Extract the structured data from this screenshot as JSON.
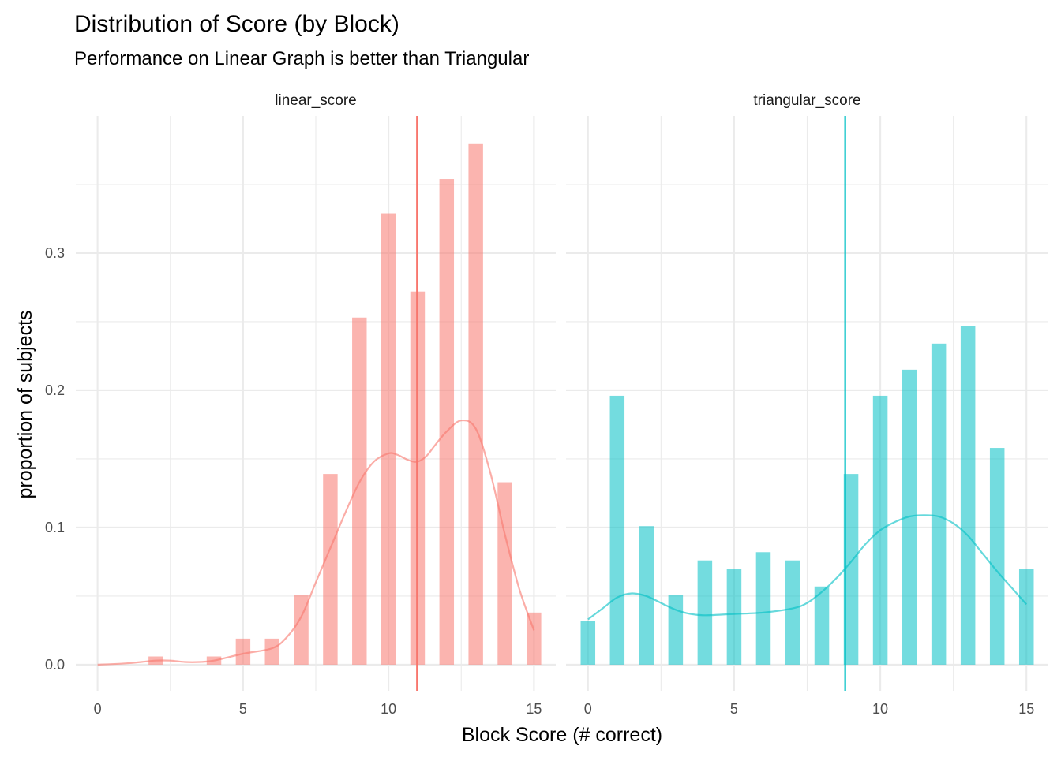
{
  "chart_data": {
    "type": "bar",
    "title": "Distribution of Score (by Block)",
    "subtitle": "Performance on Linear Graph is better than Triangular",
    "xlabel": "Block Score (# correct)",
    "ylabel": "proportion of subjects",
    "xlim": [
      -0.75,
      15.75
    ],
    "ylim": [
      -0.019,
      0.4
    ],
    "x_ticks": [
      0,
      5,
      10,
      15
    ],
    "y_ticks": [
      0.0,
      0.1,
      0.2,
      0.3
    ],
    "y_tick_labels": [
      "0.0",
      "0.1",
      "0.2",
      "0.3"
    ],
    "grid": true,
    "legend": "none",
    "facets": [
      {
        "name": "linear_score",
        "color": "#F8766D",
        "mean": 10.98,
        "bars": [
          {
            "x": 2,
            "value": 0.006
          },
          {
            "x": 4,
            "value": 0.006
          },
          {
            "x": 5,
            "value": 0.019
          },
          {
            "x": 6,
            "value": 0.019
          },
          {
            "x": 7,
            "value": 0.051
          },
          {
            "x": 8,
            "value": 0.139
          },
          {
            "x": 9,
            "value": 0.253
          },
          {
            "x": 10,
            "value": 0.329
          },
          {
            "x": 11,
            "value": 0.272
          },
          {
            "x": 12,
            "value": 0.354
          },
          {
            "x": 13,
            "value": 0.38
          },
          {
            "x": 14,
            "value": 0.133
          },
          {
            "x": 15,
            "value": 0.038
          }
        ],
        "density": {
          "x": [
            0,
            1,
            1.5,
            2,
            2.5,
            3,
            3.5,
            4,
            5,
            6,
            6.5,
            7,
            7.5,
            8,
            8.5,
            9,
            9.5,
            10,
            10.3,
            10.7,
            11,
            11.3,
            11.6,
            12,
            12.5,
            13,
            13.5,
            14,
            14.5,
            15
          ],
          "y": [
            0,
            0.001,
            0.002,
            0.003,
            0.003,
            0.002,
            0.002,
            0.003,
            0.008,
            0.012,
            0.02,
            0.035,
            0.06,
            0.085,
            0.11,
            0.133,
            0.148,
            0.154,
            0.153,
            0.149,
            0.148,
            0.152,
            0.16,
            0.17,
            0.178,
            0.172,
            0.14,
            0.095,
            0.055,
            0.025
          ]
        }
      },
      {
        "name": "triangular_score",
        "color": "#00BFC4",
        "mean": 8.8,
        "bars": [
          {
            "x": 0,
            "value": 0.032
          },
          {
            "x": 1,
            "value": 0.196
          },
          {
            "x": 2,
            "value": 0.101
          },
          {
            "x": 3,
            "value": 0.051
          },
          {
            "x": 4,
            "value": 0.076
          },
          {
            "x": 5,
            "value": 0.07
          },
          {
            "x": 6,
            "value": 0.082
          },
          {
            "x": 7,
            "value": 0.076
          },
          {
            "x": 8,
            "value": 0.057
          },
          {
            "x": 9,
            "value": 0.139
          },
          {
            "x": 10,
            "value": 0.196
          },
          {
            "x": 11,
            "value": 0.215
          },
          {
            "x": 12,
            "value": 0.234
          },
          {
            "x": 13,
            "value": 0.247
          },
          {
            "x": 14,
            "value": 0.158
          },
          {
            "x": 15,
            "value": 0.07
          }
        ],
        "density": {
          "x": [
            0,
            0.5,
            1,
            1.5,
            2,
            2.5,
            3,
            3.5,
            4,
            5,
            6,
            7,
            7.5,
            8,
            8.5,
            9,
            9.5,
            10,
            10.5,
            11,
            11.5,
            12,
            12.5,
            13,
            13.5,
            14,
            14.5,
            15
          ],
          "y": [
            0.033,
            0.041,
            0.049,
            0.052,
            0.05,
            0.045,
            0.04,
            0.037,
            0.036,
            0.037,
            0.038,
            0.041,
            0.045,
            0.053,
            0.063,
            0.075,
            0.088,
            0.098,
            0.104,
            0.108,
            0.109,
            0.108,
            0.103,
            0.094,
            0.081,
            0.068,
            0.056,
            0.044
          ]
        }
      }
    ]
  }
}
